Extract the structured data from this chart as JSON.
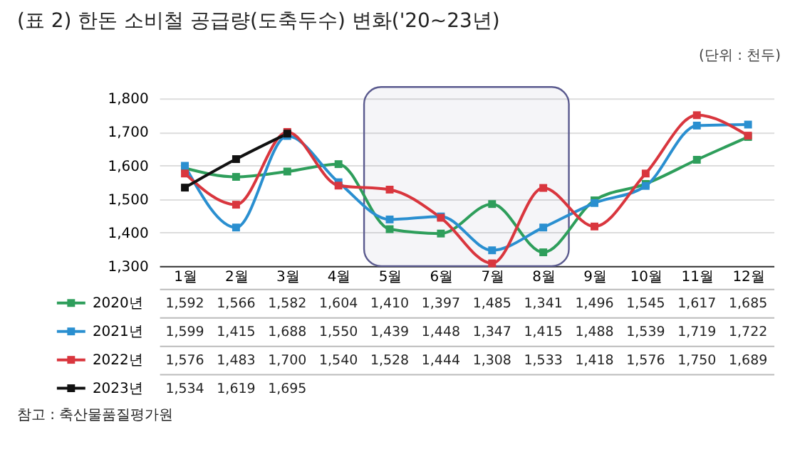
{
  "chart_data": {
    "type": "line",
    "title": "(표 2) 한돈 소비철 공급량(도축두수) 변화('20~23년)",
    "categories": [
      "1월",
      "2월",
      "3월",
      "4월",
      "5월",
      "6월",
      "7월",
      "8월",
      "9월",
      "10월",
      "11월",
      "12월"
    ],
    "series": [
      {
        "name": "2020년",
        "color": "#2e9e5b",
        "values": [
          1592,
          1566,
          1582,
          1604,
          1410,
          1397,
          1485,
          1341,
          1496,
          1545,
          1617,
          1685
        ],
        "value_labels": [
          "1,592",
          "1,566",
          "1,582",
          "1,604",
          "1,410",
          "1,397",
          "1,485",
          "1,341",
          "1,496",
          "1,545",
          "1,617",
          "1,685"
        ]
      },
      {
        "name": "2021년",
        "color": "#2a8fd0",
        "values": [
          1599,
          1415,
          1688,
          1550,
          1439,
          1448,
          1347,
          1415,
          1488,
          1539,
          1719,
          1722
        ],
        "value_labels": [
          "1,599",
          "1,415",
          "1,688",
          "1,550",
          "1,439",
          "1,448",
          "1,347",
          "1,415",
          "1,488",
          "1,539",
          "1,719",
          "1,722"
        ]
      },
      {
        "name": "2022년",
        "color": "#d9363e",
        "values": [
          1576,
          1483,
          1700,
          1540,
          1528,
          1444,
          1308,
          1533,
          1418,
          1576,
          1750,
          1689
        ],
        "value_labels": [
          "1,576",
          "1,483",
          "1,700",
          "1,540",
          "1,528",
          "1,444",
          "1,308",
          "1,533",
          "1,418",
          "1,576",
          "1,750",
          "1,689"
        ]
      },
      {
        "name": "2023년",
        "color": "#111111",
        "values": [
          1534,
          1619,
          1695,
          null,
          null,
          null,
          null,
          null,
          null,
          null,
          null,
          null
        ],
        "value_labels": [
          "1,534",
          "1,619",
          "1,695",
          null,
          null,
          null,
          null,
          null,
          null,
          null,
          null,
          null
        ]
      }
    ],
    "ylim": [
      1300,
      1800
    ],
    "yticks": [
      {
        "value": 1300,
        "label": "1,300"
      },
      {
        "value": 1400,
        "label": "1,400"
      },
      {
        "value": 1500,
        "label": "1,500"
      },
      {
        "value": 1600,
        "label": "1,600"
      },
      {
        "value": 1700,
        "label": "1,700"
      },
      {
        "value": 1800,
        "label": "1,800"
      }
    ],
    "bands": [
      {
        "axis": "x",
        "from": "5월",
        "to": "8월",
        "color": "#5a5a8e"
      }
    ],
    "annotations": [
      "(단위 : 천두)",
      "참고 : 축산물품질평가원"
    ],
    "grid": "y",
    "legend": "bottom",
    "marker": "square",
    "line_style": "solid"
  }
}
